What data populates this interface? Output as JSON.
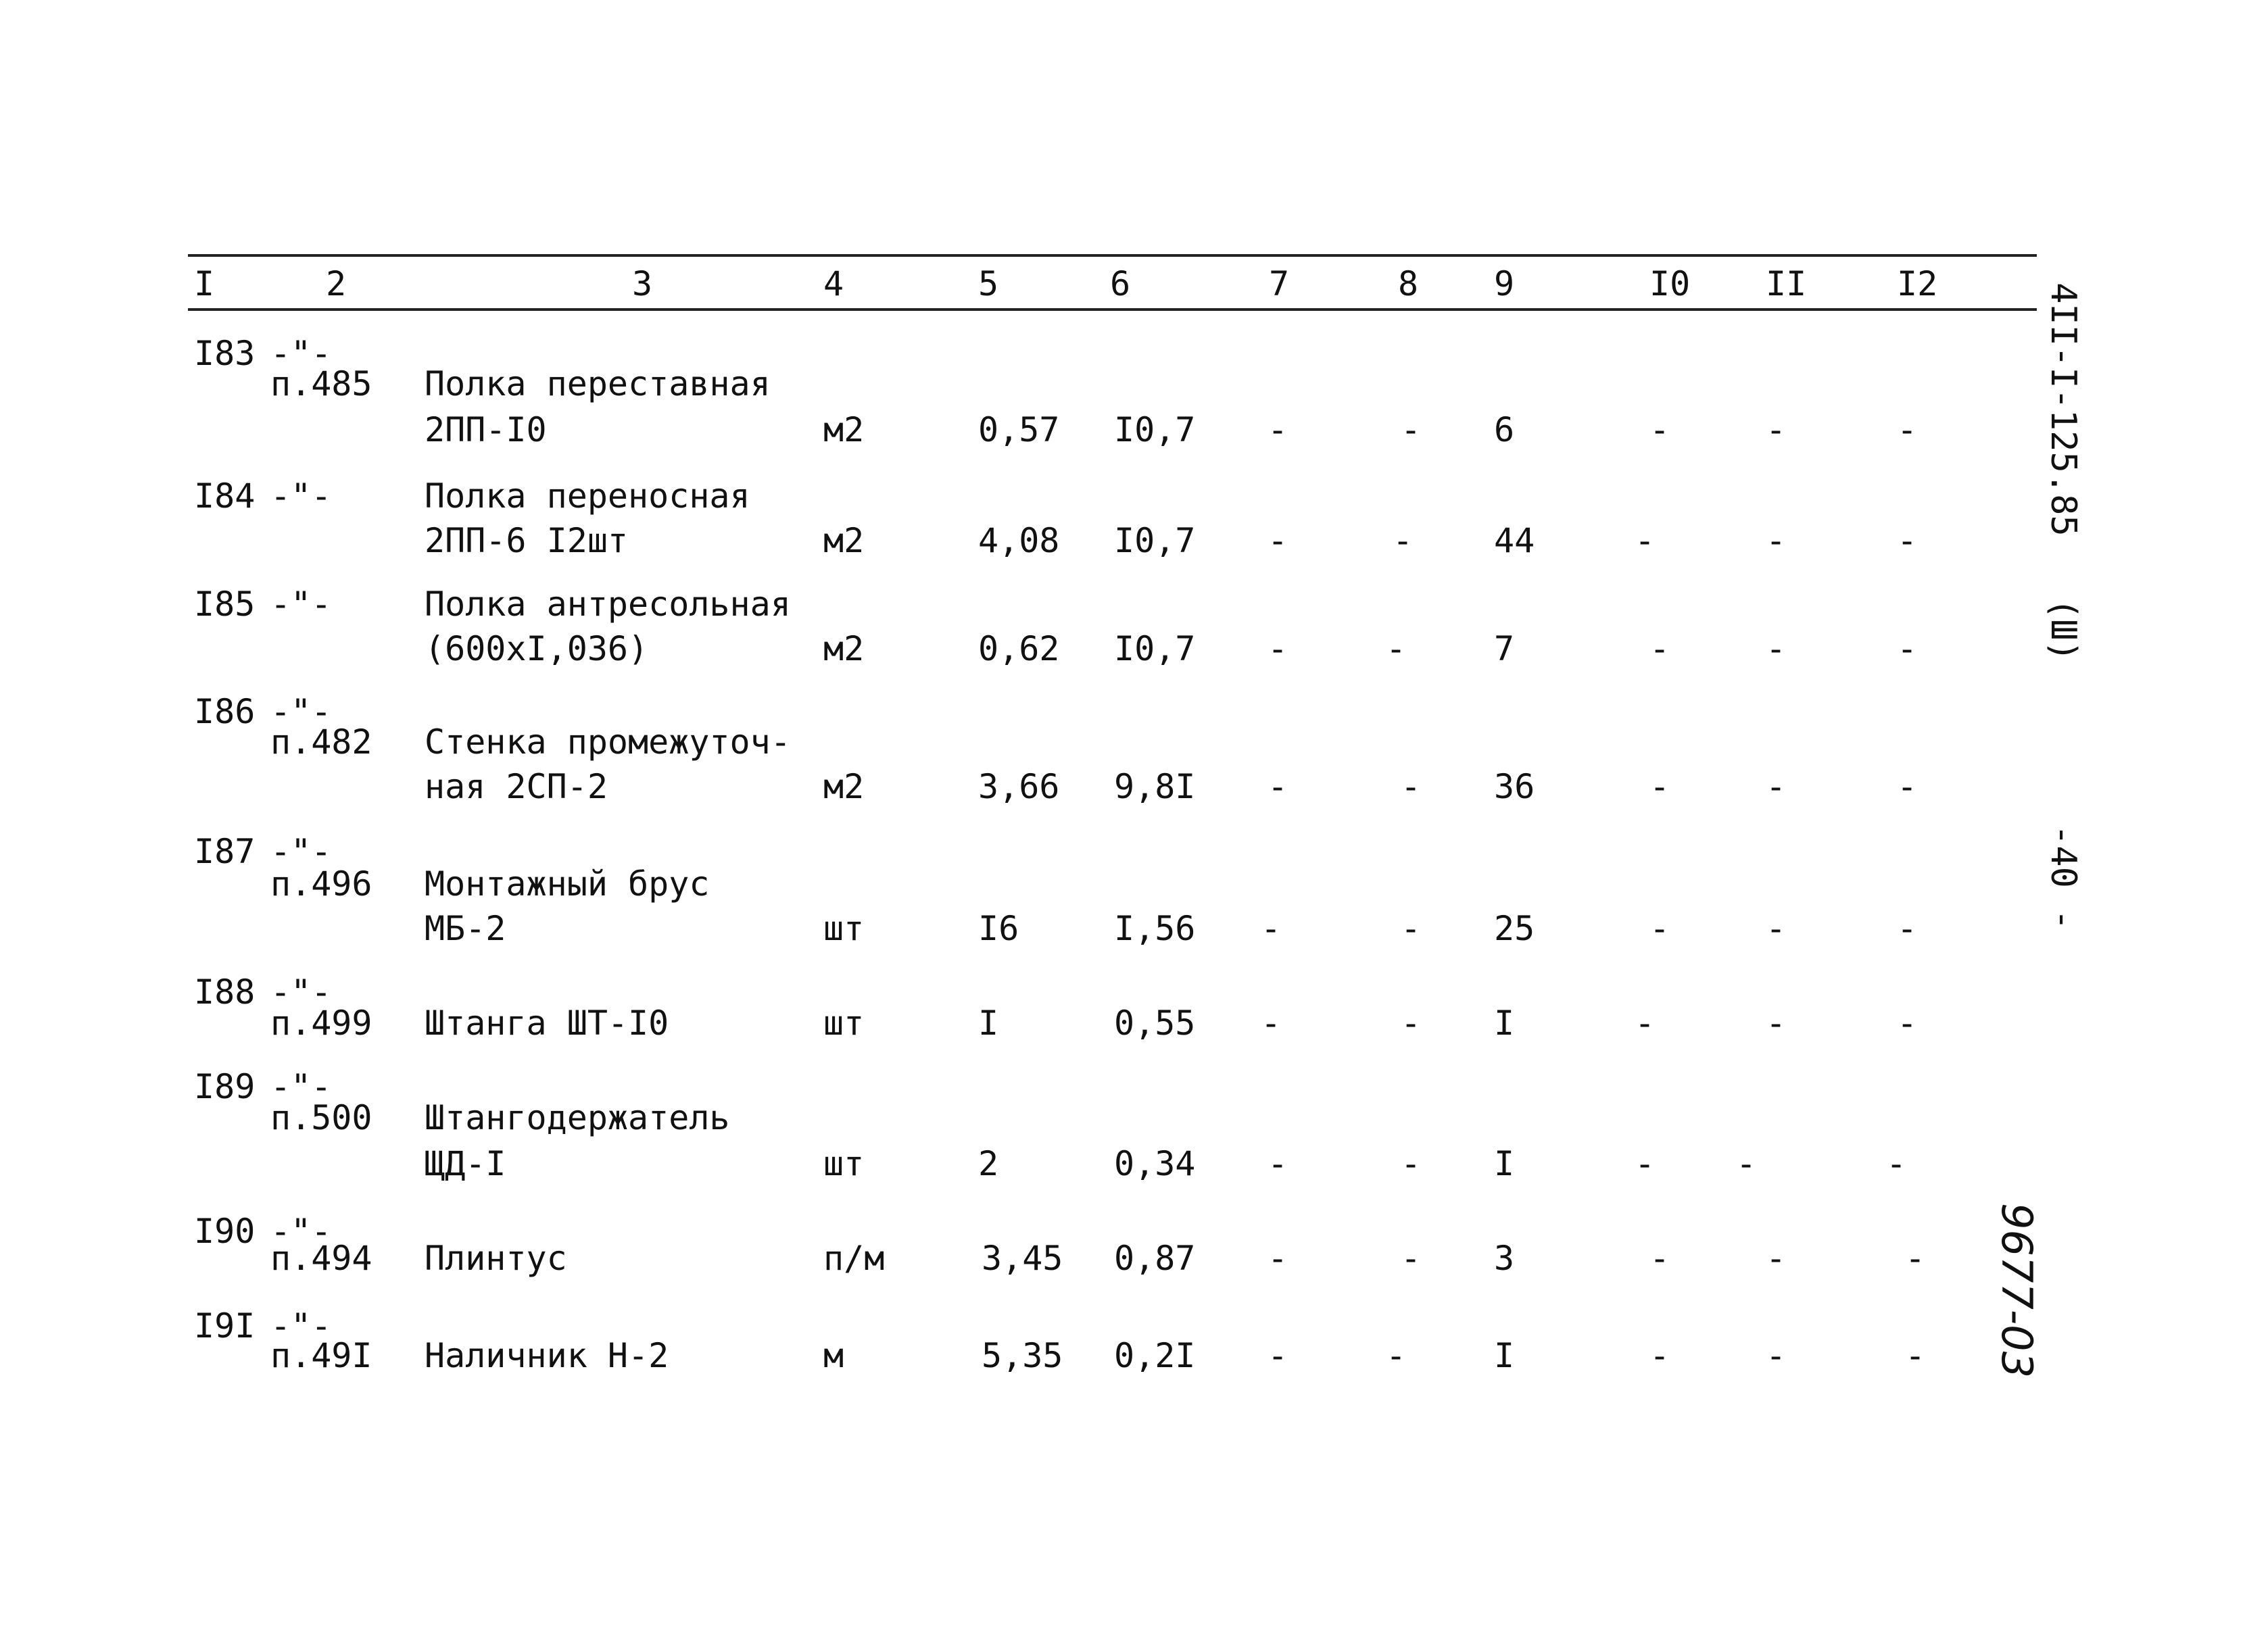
{
  "header": {
    "columns": [
      "I",
      "2",
      "3",
      "4",
      "5",
      "6",
      "7",
      "8",
      "9",
      "I0",
      "II",
      "I2"
    ]
  },
  "rows": [
    {
      "num": "I83",
      "ref1": "-\"-",
      "ref2": "п.485",
      "name1": "Полка переставная",
      "name2": "2ПП-I0",
      "unit": "м2",
      "c5": "0,57",
      "c6": "I0,7",
      "c7": "-",
      "c8": "-",
      "c9": "6",
      "c10": "-",
      "c11": "-",
      "c12": "-"
    },
    {
      "num": "I84",
      "ref1": "-\"-",
      "ref2": "",
      "name1": "Полка переносная",
      "name2": "2ПП-6 I2шт",
      "unit": "м2",
      "c5": "4,08",
      "c6": "I0,7",
      "c7": "-",
      "c8": "-",
      "c9": "44",
      "c10": "-",
      "c11": "-",
      "c12": "-"
    },
    {
      "num": "I85",
      "ref1": "-\"-",
      "ref2": "",
      "name1": "Полка антресольная",
      "name2": "(600хI,036)",
      "unit": "м2",
      "c5": "0,62",
      "c6": "I0,7",
      "c7": "-",
      "c8": "-",
      "c9": "7",
      "c10": "-",
      "c11": "-",
      "c12": "-"
    },
    {
      "num": "I86",
      "ref1": "-\"-",
      "ref2": "п.482",
      "name1": "Стенка промежуточ-",
      "name2": "ная 2СП-2",
      "unit": "м2",
      "c5": "3,66",
      "c6": "9,8I",
      "c7": "-",
      "c8": "-",
      "c9": "36",
      "c10": "-",
      "c11": "-",
      "c12": "-"
    },
    {
      "num": "I87",
      "ref1": "-\"-",
      "ref2": "п.496",
      "name1": "Монтажный брус",
      "name2": "МБ-2",
      "unit": "шт",
      "c5": "I6",
      "c6": "I,56",
      "c7": "-",
      "c8": "-",
      "c9": "25",
      "c10": "-",
      "c11": "-",
      "c12": "-"
    },
    {
      "num": "I88",
      "ref1": "-\"-",
      "ref2": "п.499",
      "name1": "",
      "name2": "Штанга ШТ-I0",
      "unit": "шт",
      "c5": "I",
      "c6": "0,55",
      "c7": "-",
      "c8": "-",
      "c9": "I",
      "c10": "-",
      "c11": "-",
      "c12": "-"
    },
    {
      "num": "I89",
      "ref1": "-\"-",
      "ref2": "п.500",
      "name1": "Штангодержатель",
      "name2": "ЩД-I",
      "unit": "шт",
      "c5": "2",
      "c6": "0,34",
      "c7": "-",
      "c8": "-",
      "c9": "I",
      "c10": "-",
      "c11": "-",
      "c12": "-"
    },
    {
      "num": "I90",
      "ref1": "-\"-",
      "ref2": "п.494",
      "name1": "",
      "name2": "Плинтус",
      "unit": "п/м",
      "c5": "3,45",
      "c6": "0,87",
      "c7": "-",
      "c8": "-",
      "c9": "3",
      "c10": "-",
      "c11": "-",
      "c12": "-"
    },
    {
      "num": "I9I",
      "ref1": "-\"-",
      "ref2": "п.49I",
      "name1": "",
      "name2": "Наличник Н-2",
      "unit": "м",
      "c5": "5,35",
      "c6": "0,2I",
      "c7": "-",
      "c8": "-",
      "c9": "I",
      "c10": "-",
      "c11": "-",
      "c12": "-"
    }
  ],
  "margin": {
    "doc_code": "4II-I-125.85",
    "volume": "(Ш)",
    "page": "-40 -",
    "inventory": "9677-03"
  }
}
